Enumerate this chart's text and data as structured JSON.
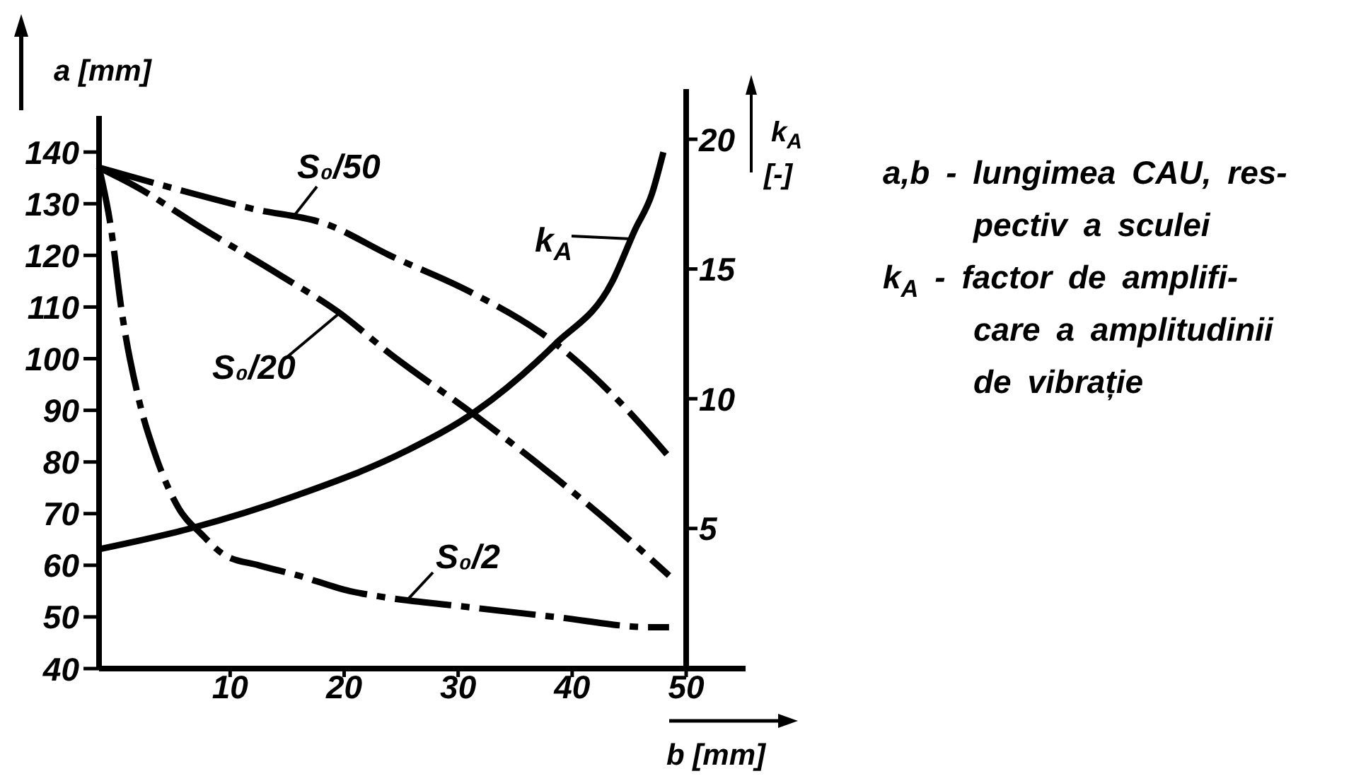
{
  "chart_data": {
    "type": "line",
    "xlabel": "b [mm]",
    "ylabel": "a [mm]",
    "y2label": "k$_{A}$ [-]",
    "xlim": [
      -1.5,
      50
    ],
    "xticks": [
      10,
      20,
      30,
      40,
      50
    ],
    "ylim": [
      40,
      147
    ],
    "yticks": [
      40,
      50,
      60,
      70,
      80,
      90,
      100,
      110,
      120,
      130,
      140
    ],
    "y2lim": [
      -0.4,
      20.9
    ],
    "y2ticks": [
      5,
      10,
      15,
      20
    ],
    "series": [
      {
        "name": "S₀/50",
        "color": "#000000",
        "line_style": "dashed",
        "x": [
          -1.5,
          5,
          12,
          18.5,
          24,
          31,
          38.5,
          44,
          48.5
        ],
        "values": [
          137,
          133,
          129,
          126,
          120,
          113,
          103,
          92,
          81
        ]
      },
      {
        "name": "S₀/20",
        "color": "#000000",
        "line_style": "dashed",
        "x": [
          -1.5,
          2,
          7,
          14.5,
          19.5,
          24,
          31.5,
          38.5,
          46,
          48.5
        ],
        "values": [
          137,
          133,
          126,
          116,
          109,
          101,
          89,
          77,
          63,
          58
        ]
      },
      {
        "name": "S₀/2",
        "color": "#000000",
        "line_style": "dashed",
        "x": [
          -1.5,
          -0.5,
          0.5,
          2,
          3.5,
          5.5,
          7.5,
          9.5,
          12.5,
          16,
          20.5,
          23,
          30.5,
          38.5,
          47,
          48.5
        ],
        "values": [
          137,
          126,
          109,
          92,
          81,
          71,
          66,
          62,
          60,
          58,
          55,
          54,
          52,
          50,
          48,
          48
        ]
      },
      {
        "name": "k$_{A}$",
        "color": "#000000",
        "line_style": "solid",
        "axis": "y2",
        "x": [
          -1.5,
          6.5,
          16,
          25.5,
          31.5,
          38.5,
          43.5,
          45.5,
          47,
          48
        ],
        "values": [
          4.2,
          5,
          6.3,
          8,
          9.5,
          12.1,
          14.5,
          16.5,
          17.9,
          19.5
        ]
      }
    ],
    "annotations": [
      "a,b - lungimea CAU, res-\npectiv a sculei",
      "k$_{A}$ - factor de amplifi-\ncare a amplitudinii\nde vibrație"
    ]
  }
}
